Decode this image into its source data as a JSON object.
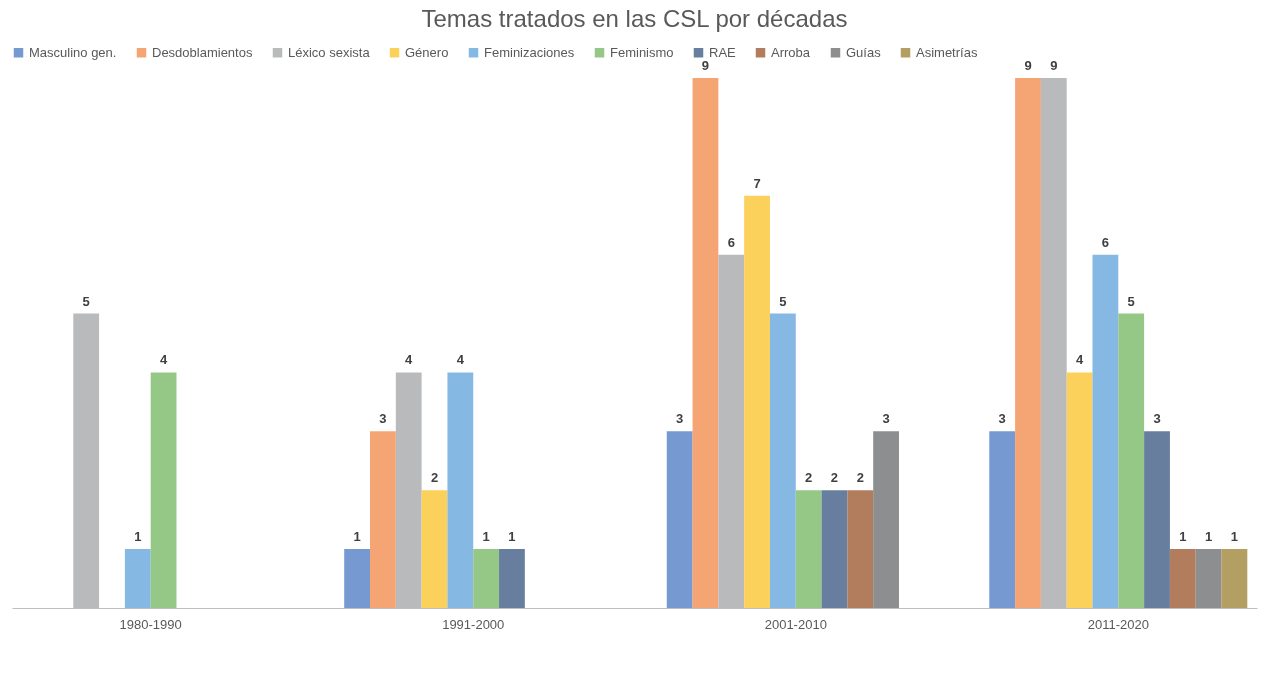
{
  "chart_data": {
    "type": "bar",
    "title": "Temas tratados en las CSL por décadas",
    "categories": [
      "1980-1990",
      "1991-2000",
      "2001-2010",
      "2011-2020"
    ],
    "series": [
      {
        "name": "Masculino gen.",
        "color": "#7094cf",
        "values": [
          null,
          1,
          3,
          3
        ]
      },
      {
        "name": "Desdoblamientos",
        "color": "#f4a06b",
        "values": [
          null,
          3,
          9,
          9
        ]
      },
      {
        "name": "Léxico sexista",
        "color": "#b4b6b8",
        "values": [
          5,
          4,
          6,
          9
        ]
      },
      {
        "name": "Género",
        "color": "#fccf52",
        "values": [
          null,
          2,
          7,
          4
        ]
      },
      {
        "name": "Feminizaciones",
        "color": "#7eb4e0",
        "values": [
          1,
          4,
          5,
          6
        ]
      },
      {
        "name": "Feminismo",
        "color": "#8fc47f",
        "values": [
          4,
          1,
          2,
          5
        ]
      },
      {
        "name": "RAE",
        "color": "#5f7799",
        "values": [
          null,
          1,
          2,
          3
        ]
      },
      {
        "name": "Arroba",
        "color": "#ad7653",
        "values": [
          null,
          null,
          2,
          1
        ]
      },
      {
        "name": "Guías",
        "color": "#868889",
        "values": [
          null,
          null,
          3,
          1
        ]
      },
      {
        "name": "Asimetrías",
        "color": "#b09a5a",
        "values": [
          null,
          null,
          null,
          1
        ]
      }
    ],
    "data_labels": true,
    "legend": "top",
    "grid": false,
    "tick_labels": "x"
  }
}
